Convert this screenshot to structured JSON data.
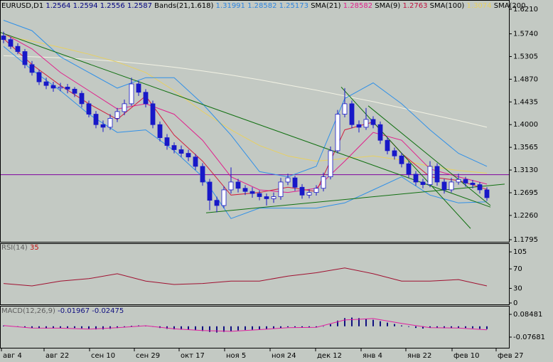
{
  "header": [
    {
      "text": "EURUSD,D1",
      "color": "#000000"
    },
    {
      "text": 1.2564,
      "color": "#000080"
    },
    {
      "text": 1.2594,
      "color": "#000080"
    },
    {
      "text": 1.2556,
      "color": "#000080"
    },
    {
      "text": 1.2587,
      "color": "#000080"
    },
    {
      "text": "Bands(21,1.618)",
      "color": "#000000"
    },
    {
      "text": 1.31991,
      "color": "#2f86e0"
    },
    {
      "text": 1.28582,
      "color": "#2f86e0"
    },
    {
      "text": 1.25173,
      "color": "#2f86e0"
    },
    {
      "text": "SMA(21)",
      "color": "#000000"
    },
    {
      "text": 1.28582,
      "color": "#e0208c"
    },
    {
      "text": "SMA(9)",
      "color": "#000000"
    },
    {
      "text": 1.2763,
      "color": "#c01040"
    },
    {
      "text": "SMA(100)",
      "color": "#000000"
    },
    {
      "text": 1.3074,
      "color": "#e8d060"
    },
    {
      "text": "SMA(200",
      "color": "#000000"
    }
  ],
  "chart_data": [
    {
      "type": "candlestick",
      "xlim": [
        -0.5,
        71.1
      ],
      "ylim": [
        1.1741,
        1.6388
      ],
      "yticks": [
        {
          "value": 1.621,
          "label": "1.6210"
        },
        {
          "value": 1.574,
          "label": "1.5740"
        },
        {
          "value": 1.5305,
          "label": "1.5305"
        },
        {
          "value": 1.487,
          "label": "1.4870"
        },
        {
          "value": 1.4435,
          "label": "1.4435"
        },
        {
          "value": 1.4,
          "label": "1.4000"
        },
        {
          "value": 1.3565,
          "label": "1.3565"
        },
        {
          "value": 1.313,
          "label": "1.3130"
        },
        {
          "value": 1.2695,
          "label": "1.2695"
        },
        {
          "value": 1.226,
          "label": "1.2260"
        },
        {
          "value": 1.1795,
          "label": "1.1795"
        }
      ],
      "xticks": [
        {
          "value": -0.3,
          "label": "авг 4"
        },
        {
          "value": 5.7,
          "label": "авг 22"
        },
        {
          "value": 12.1,
          "label": "сен 10"
        },
        {
          "value": 18.4,
          "label": "сен 29"
        },
        {
          "value": 24.7,
          "label": "окт 17"
        },
        {
          "value": 31.1,
          "label": "ноя 5"
        },
        {
          "value": 37.5,
          "label": "ноя 24"
        },
        {
          "value": 43.9,
          "label": "дек 12"
        },
        {
          "value": 50.3,
          "label": "янв 4"
        },
        {
          "value": 56.6,
          "label": "янв 22"
        },
        {
          "value": 63.1,
          "label": "фев 10"
        },
        {
          "value": 69.3,
          "label": "фев 27"
        }
      ],
      "colors": {
        "up": "#ffffff",
        "down": "#1818c8",
        "wick": "#1818c8"
      },
      "candles": [
        [
          1.57,
          1.578,
          1.556,
          1.563
        ],
        [
          1.563,
          1.568,
          1.545,
          1.55
        ],
        [
          1.55,
          1.556,
          1.535,
          1.54
        ],
        [
          1.54,
          1.545,
          1.508,
          1.515
        ],
        [
          1.515,
          1.522,
          1.494,
          1.5
        ],
        [
          1.5,
          1.505,
          1.476,
          1.482
        ],
        [
          1.482,
          1.49,
          1.468,
          1.475
        ],
        [
          1.475,
          1.482,
          1.463,
          1.47
        ],
        [
          1.47,
          1.48,
          1.464,
          1.472
        ],
        [
          1.472,
          1.478,
          1.46,
          1.468
        ],
        [
          1.468,
          1.472,
          1.453,
          1.46
        ],
        [
          1.46,
          1.465,
          1.433,
          1.44
        ],
        [
          1.44,
          1.446,
          1.414,
          1.42
        ],
        [
          1.42,
          1.426,
          1.393,
          1.4
        ],
        [
          1.4,
          1.408,
          1.386,
          1.395
        ],
        [
          1.395,
          1.42,
          1.39,
          1.412
        ],
        [
          1.412,
          1.432,
          1.405,
          1.425
        ],
        [
          1.425,
          1.448,
          1.418,
          1.44
        ],
        [
          1.44,
          1.49,
          1.436,
          1.478
        ],
        [
          1.478,
          1.484,
          1.455,
          1.462
        ],
        [
          1.462,
          1.468,
          1.433,
          1.44
        ],
        [
          1.44,
          1.446,
          1.393,
          1.4
        ],
        [
          1.4,
          1.406,
          1.368,
          1.375
        ],
        [
          1.375,
          1.382,
          1.352,
          1.36
        ],
        [
          1.36,
          1.366,
          1.345,
          1.352
        ],
        [
          1.352,
          1.36,
          1.338,
          1.345
        ],
        [
          1.345,
          1.352,
          1.33,
          1.338
        ],
        [
          1.338,
          1.344,
          1.313,
          1.32
        ],
        [
          1.32,
          1.326,
          1.283,
          1.29
        ],
        [
          1.29,
          1.296,
          1.236,
          1.255
        ],
        [
          1.255,
          1.262,
          1.232,
          1.245
        ],
        [
          1.245,
          1.282,
          1.24,
          1.275
        ],
        [
          1.275,
          1.318,
          1.268,
          1.29
        ],
        [
          1.29,
          1.296,
          1.27,
          1.278
        ],
        [
          1.278,
          1.284,
          1.265,
          1.272
        ],
        [
          1.272,
          1.28,
          1.26,
          1.268
        ],
        [
          1.268,
          1.274,
          1.255,
          1.262
        ],
        [
          1.262,
          1.268,
          1.245,
          1.258
        ],
        [
          1.258,
          1.27,
          1.25,
          1.262
        ],
        [
          1.262,
          1.298,
          1.256,
          1.29
        ],
        [
          1.29,
          1.306,
          1.284,
          1.298
        ],
        [
          1.298,
          1.302,
          1.273,
          1.28
        ],
        [
          1.28,
          1.286,
          1.258,
          1.265
        ],
        [
          1.265,
          1.276,
          1.259,
          1.27
        ],
        [
          1.27,
          1.284,
          1.264,
          1.278
        ],
        [
          1.278,
          1.308,
          1.272,
          1.3
        ],
        [
          1.3,
          1.358,
          1.295,
          1.35
        ],
        [
          1.35,
          1.428,
          1.345,
          1.42
        ],
        [
          1.42,
          1.47,
          1.414,
          1.44
        ],
        [
          1.44,
          1.446,
          1.393,
          1.4
        ],
        [
          1.4,
          1.408,
          1.385,
          1.395
        ],
        [
          1.395,
          1.432,
          1.39,
          1.41
        ],
        [
          1.41,
          1.416,
          1.393,
          1.4
        ],
        [
          1.4,
          1.406,
          1.363,
          1.37
        ],
        [
          1.37,
          1.376,
          1.343,
          1.35
        ],
        [
          1.35,
          1.356,
          1.333,
          1.34
        ],
        [
          1.34,
          1.346,
          1.318,
          1.325
        ],
        [
          1.325,
          1.33,
          1.298,
          1.305
        ],
        [
          1.305,
          1.311,
          1.283,
          1.29
        ],
        [
          1.29,
          1.296,
          1.278,
          1.285
        ],
        [
          1.285,
          1.33,
          1.28,
          1.32
        ],
        [
          1.32,
          1.326,
          1.283,
          1.29
        ],
        [
          1.29,
          1.296,
          1.268,
          1.275
        ],
        [
          1.275,
          1.298,
          1.27,
          1.29
        ],
        [
          1.29,
          1.306,
          1.285,
          1.295
        ],
        [
          1.295,
          1.3,
          1.281,
          1.288
        ],
        [
          1.288,
          1.294,
          1.278,
          1.285
        ],
        [
          1.285,
          1.29,
          1.268,
          1.275
        ],
        [
          1.275,
          1.28,
          1.254,
          1.26
        ]
      ],
      "line_x": [
        0,
        4,
        8,
        12,
        16,
        20,
        24,
        28,
        32,
        36,
        40,
        44,
        48,
        52,
        56,
        60,
        64,
        68
      ],
      "lines": [
        {
          "color": "#f2f2e4",
          "values": [
            1.532,
            1.53,
            1.528,
            1.525,
            1.521,
            1.516,
            1.51,
            1.503,
            1.495,
            1.486,
            1.476,
            1.466,
            1.455,
            1.444,
            1.432,
            1.42,
            1.408,
            1.395
          ]
        },
        {
          "color": "#e8d060",
          "values": [
            1.57,
            1.56,
            1.548,
            1.535,
            1.52,
            1.5,
            1.465,
            1.425,
            1.39,
            1.36,
            1.34,
            1.33,
            1.335,
            1.34,
            1.332,
            1.32,
            1.312,
            1.307
          ]
        },
        {
          "color": "#3090e8",
          "values": [
            1.6,
            1.58,
            1.53,
            1.5,
            1.47,
            1.49,
            1.49,
            1.44,
            1.38,
            1.31,
            1.3,
            1.32,
            1.45,
            1.48,
            1.44,
            1.39,
            1.345,
            1.32
          ]
        },
        {
          "color": "#3090e8",
          "values": [
            1.55,
            1.505,
            1.465,
            1.42,
            1.385,
            1.39,
            1.35,
            1.3,
            1.22,
            1.24,
            1.24,
            1.24,
            1.25,
            1.275,
            1.3,
            1.265,
            1.25,
            1.252
          ]
        },
        {
          "color": "#e0208c",
          "values": [
            1.575,
            1.545,
            1.5,
            1.465,
            1.43,
            1.44,
            1.42,
            1.37,
            1.3,
            1.275,
            1.27,
            1.278,
            1.33,
            1.385,
            1.37,
            1.315,
            1.3,
            1.286
          ]
        },
        {
          "color": "#d02040",
          "values": [
            1.565,
            1.515,
            1.475,
            1.44,
            1.41,
            1.455,
            1.38,
            1.33,
            1.265,
            1.27,
            1.28,
            1.272,
            1.39,
            1.405,
            1.345,
            1.3,
            1.293,
            1.276
          ]
        }
      ],
      "trendlines": [
        {
          "color": "#107010",
          "points": [
            [
              -0.5,
              1.577
            ],
            [
              68.5,
              1.242
            ]
          ]
        },
        {
          "color": "#107010",
          "points": [
            [
              28.5,
              1.231
            ],
            [
              70.5,
              1.286
            ]
          ]
        },
        {
          "color": "#107010",
          "points": [
            [
              47.5,
              1.472
            ],
            [
              65.7,
              1.201
            ]
          ]
        },
        {
          "color": "#107010",
          "points": [
            [
              51.3,
              1.436
            ],
            [
              68.5,
              1.245
            ]
          ]
        }
      ],
      "hline": {
        "value": 1.304,
        "color": "#8000a0"
      }
    },
    {
      "type": "line",
      "label": "RSI(14)",
      "value": 35,
      "label_color": "#606060",
      "value_color": "#c01010",
      "ylim": [
        -4.4,
        122.7
      ],
      "yticks": [
        105,
        70,
        30,
        0
      ],
      "x": [
        0,
        4,
        8,
        12,
        16,
        20,
        24,
        28,
        32,
        36,
        40,
        44,
        48,
        52,
        56,
        60,
        64,
        68
      ],
      "values": [
        40,
        35,
        45,
        50,
        60,
        45,
        38,
        40,
        45,
        45,
        55,
        62,
        72,
        60,
        45,
        45,
        48,
        35
      ],
      "color": "#a01030"
    },
    {
      "type": "histogram",
      "label": "MACD(12,26,9)",
      "main_value": -0.01967,
      "signal_value": -0.02475,
      "label_color": "#606060",
      "ylim": [
        -0.1576,
        0.1454
      ],
      "yticks": [
        0.08481,
        -0.07681
      ],
      "values": [
        0.005,
        0.002,
        -0.003,
        -0.008,
        -0.012,
        -0.015,
        -0.016,
        -0.015,
        -0.013,
        -0.012,
        -0.012,
        -0.014,
        -0.018,
        -0.022,
        -0.022,
        -0.018,
        -0.012,
        -0.005,
        0.004,
        0.006,
        0.003,
        -0.004,
        -0.012,
        -0.018,
        -0.022,
        -0.024,
        -0.026,
        -0.029,
        -0.034,
        -0.04,
        -0.044,
        -0.04,
        -0.034,
        -0.03,
        -0.026,
        -0.024,
        -0.022,
        -0.02,
        -0.018,
        -0.012,
        -0.006,
        -0.006,
        -0.008,
        -0.008,
        -0.006,
        0.0,
        0.015,
        0.04,
        0.058,
        0.062,
        0.058,
        0.052,
        0.046,
        0.036,
        0.026,
        0.016,
        0.006,
        -0.004,
        -0.012,
        -0.016,
        -0.01,
        -0.01,
        -0.014,
        -0.014,
        -0.012,
        -0.012,
        -0.014,
        -0.018,
        -0.02
      ],
      "color": "#101080",
      "signal_x": [
        0,
        4,
        8,
        12,
        16,
        20,
        24,
        28,
        32,
        36,
        40,
        44,
        48,
        52,
        56,
        60,
        64,
        68
      ],
      "signal": [
        0.005,
        -0.012,
        -0.013,
        -0.02,
        -0.01,
        0.004,
        -0.018,
        -0.03,
        -0.036,
        -0.024,
        -0.01,
        -0.007,
        0.045,
        0.055,
        0.02,
        -0.01,
        -0.012,
        -0.025
      ],
      "signal_color": "#e020a0"
    }
  ]
}
